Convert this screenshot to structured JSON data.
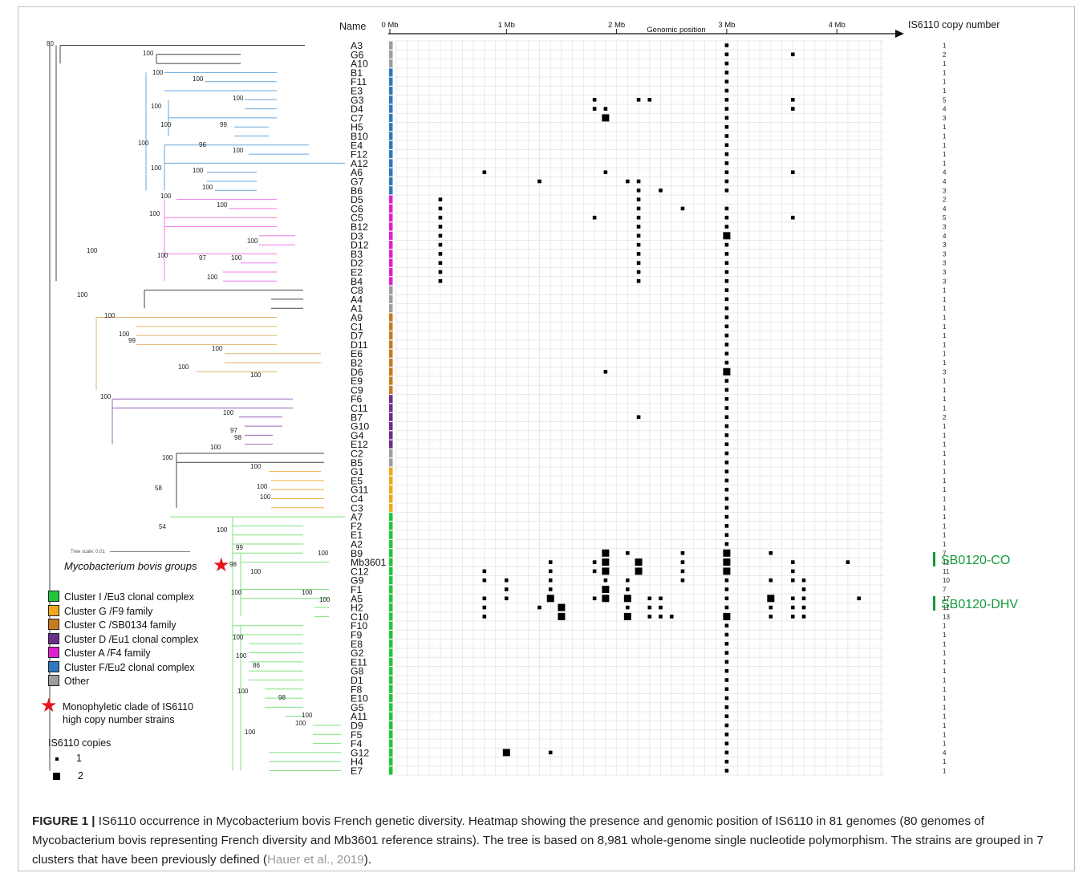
{
  "figure": {
    "header_name": "Name",
    "header_copy": "IS6110 copy number",
    "axis_title": "Genomic position",
    "axis_ticks": [
      "0 Mb",
      "1 Mb",
      "2 Mb",
      "3 Mb",
      "4 Mb"
    ],
    "axis_tick_values_mb": [
      0,
      1,
      2,
      3,
      4
    ]
  },
  "groups": {
    "I": {
      "color": "#21c63b",
      "branch": "#7fe07f"
    },
    "G": {
      "color": "#f0a81a",
      "branch": "#f0b040"
    },
    "C": {
      "color": "#c87a1e",
      "branch": "#e2b36d"
    },
    "D": {
      "color": "#6a2f8a",
      "branch": "#9b64b8"
    },
    "A": {
      "color": "#e020d0",
      "branch": "#f07be6"
    },
    "F": {
      "color": "#2f78c0",
      "branch": "#6aa7d9"
    },
    "O": {
      "color": "#9e9e9e",
      "branch": "#444444"
    }
  },
  "strains": [
    {
      "name": "A3",
      "group": "O",
      "copies": "1",
      "pos": [
        3.0,
        1
      ]
    },
    {
      "name": "G6",
      "group": "O",
      "copies": "2",
      "pos": [
        3.0,
        1,
        3.6,
        1
      ]
    },
    {
      "name": "A10",
      "group": "O",
      "copies": "1",
      "pos": [
        3.0,
        1
      ]
    },
    {
      "name": "B1",
      "group": "F",
      "copies": "1",
      "pos": [
        3.0,
        1
      ]
    },
    {
      "name": "F11",
      "group": "F",
      "copies": "1",
      "pos": [
        3.0,
        1
      ]
    },
    {
      "name": "E3",
      "group": "F",
      "copies": "1",
      "pos": [
        3.0,
        1
      ]
    },
    {
      "name": "G3",
      "group": "F",
      "copies": "5",
      "pos": [
        1.8,
        1,
        2.2,
        1,
        2.3,
        1,
        3.0,
        1,
        3.6,
        1
      ]
    },
    {
      "name": "D4",
      "group": "F",
      "copies": "4",
      "pos": [
        1.8,
        1,
        1.9,
        1,
        3.0,
        1,
        3.6,
        1
      ]
    },
    {
      "name": "C7",
      "group": "F",
      "copies": "3",
      "pos": [
        1.9,
        2,
        3.0,
        1
      ]
    },
    {
      "name": "H5",
      "group": "F",
      "copies": "1",
      "pos": [
        3.0,
        1
      ]
    },
    {
      "name": "B10",
      "group": "F",
      "copies": "1",
      "pos": [
        3.0,
        1
      ]
    },
    {
      "name": "E4",
      "group": "F",
      "copies": "1",
      "pos": [
        3.0,
        1
      ]
    },
    {
      "name": "F12",
      "group": "F",
      "copies": "1",
      "pos": [
        3.0,
        1
      ]
    },
    {
      "name": "A12",
      "group": "F",
      "copies": "1",
      "pos": [
        3.0,
        1
      ]
    },
    {
      "name": "A6",
      "group": "F",
      "copies": "4",
      "pos": [
        0.8,
        1,
        1.9,
        1,
        3.0,
        1,
        3.6,
        1
      ]
    },
    {
      "name": "G7",
      "group": "F",
      "copies": "4",
      "pos": [
        1.3,
        1,
        2.1,
        1,
        2.2,
        1,
        3.0,
        1
      ]
    },
    {
      "name": "B6",
      "group": "F",
      "copies": "3",
      "pos": [
        2.2,
        1,
        2.4,
        1,
        3.0,
        1
      ]
    },
    {
      "name": "D5",
      "group": "A",
      "copies": "2",
      "pos": [
        0.4,
        1,
        2.2,
        1
      ]
    },
    {
      "name": "C6",
      "group": "A",
      "copies": "4",
      "pos": [
        0.4,
        1,
        2.2,
        1,
        2.6,
        1,
        3.0,
        1
      ]
    },
    {
      "name": "C5",
      "group": "A",
      "copies": "5",
      "pos": [
        0.4,
        1,
        1.8,
        1,
        2.2,
        1,
        3.0,
        1,
        3.6,
        1
      ]
    },
    {
      "name": "B12",
      "group": "A",
      "copies": "3",
      "pos": [
        0.4,
        1,
        2.2,
        1,
        3.0,
        1
      ]
    },
    {
      "name": "D3",
      "group": "A",
      "copies": "4",
      "pos": [
        0.4,
        1,
        2.2,
        1,
        3.0,
        2
      ]
    },
    {
      "name": "D12",
      "group": "A",
      "copies": "3",
      "pos": [
        0.4,
        1,
        2.2,
        1,
        3.0,
        1
      ]
    },
    {
      "name": "B3",
      "group": "A",
      "copies": "3",
      "pos": [
        0.4,
        1,
        2.2,
        1,
        3.0,
        1
      ]
    },
    {
      "name": "D2",
      "group": "A",
      "copies": "3",
      "pos": [
        0.4,
        1,
        2.2,
        1,
        3.0,
        1
      ]
    },
    {
      "name": "E2",
      "group": "A",
      "copies": "3",
      "pos": [
        0.4,
        1,
        2.2,
        1,
        3.0,
        1
      ]
    },
    {
      "name": "B4",
      "group": "A",
      "copies": "3",
      "pos": [
        0.4,
        1,
        2.2,
        1,
        3.0,
        1
      ]
    },
    {
      "name": "C8",
      "group": "O",
      "copies": "1",
      "pos": [
        3.0,
        1
      ]
    },
    {
      "name": "A4",
      "group": "O",
      "copies": "1",
      "pos": [
        3.0,
        1
      ]
    },
    {
      "name": "A1",
      "group": "O",
      "copies": "1",
      "pos": [
        3.0,
        1
      ]
    },
    {
      "name": "A9",
      "group": "C",
      "copies": "1",
      "pos": [
        3.0,
        1
      ]
    },
    {
      "name": "C1",
      "group": "C",
      "copies": "1",
      "pos": [
        3.0,
        1
      ]
    },
    {
      "name": "D7",
      "group": "C",
      "copies": "1",
      "pos": [
        3.0,
        1
      ]
    },
    {
      "name": "D11",
      "group": "C",
      "copies": "1",
      "pos": [
        3.0,
        1
      ]
    },
    {
      "name": "E6",
      "group": "C",
      "copies": "1",
      "pos": [
        3.0,
        1
      ]
    },
    {
      "name": "B2",
      "group": "C",
      "copies": "1",
      "pos": [
        3.0,
        1
      ]
    },
    {
      "name": "D6",
      "group": "C",
      "copies": "3",
      "pos": [
        1.9,
        1,
        3.0,
        2
      ]
    },
    {
      "name": "E9",
      "group": "C",
      "copies": "1",
      "pos": [
        3.0,
        1
      ]
    },
    {
      "name": "C9",
      "group": "C",
      "copies": "1",
      "pos": [
        3.0,
        1
      ]
    },
    {
      "name": "F6",
      "group": "D",
      "copies": "1",
      "pos": [
        3.0,
        1
      ]
    },
    {
      "name": "C11",
      "group": "D",
      "copies": "1",
      "pos": [
        3.0,
        1
      ]
    },
    {
      "name": "B7",
      "group": "D",
      "copies": "2",
      "pos": [
        2.2,
        1,
        3.0,
        1
      ]
    },
    {
      "name": "G10",
      "group": "D",
      "copies": "1",
      "pos": [
        3.0,
        1
      ]
    },
    {
      "name": "G4",
      "group": "D",
      "copies": "1",
      "pos": [
        3.0,
        1
      ]
    },
    {
      "name": "E12",
      "group": "D",
      "copies": "1",
      "pos": [
        3.0,
        1
      ]
    },
    {
      "name": "C2",
      "group": "O",
      "copies": "1",
      "pos": [
        3.0,
        1
      ]
    },
    {
      "name": "B5",
      "group": "O",
      "copies": "1",
      "pos": [
        3.0,
        1
      ]
    },
    {
      "name": "G1",
      "group": "G",
      "copies": "1",
      "pos": [
        3.0,
        1
      ]
    },
    {
      "name": "E5",
      "group": "G",
      "copies": "1",
      "pos": [
        3.0,
        1
      ]
    },
    {
      "name": "G11",
      "group": "G",
      "copies": "1",
      "pos": [
        3.0,
        1
      ]
    },
    {
      "name": "C4",
      "group": "G",
      "copies": "1",
      "pos": [
        3.0,
        1
      ]
    },
    {
      "name": "C3",
      "group": "G",
      "copies": "1",
      "pos": [
        3.0,
        1
      ]
    },
    {
      "name": "A7",
      "group": "I",
      "copies": "1",
      "pos": [
        3.0,
        1
      ]
    },
    {
      "name": "F2",
      "group": "I",
      "copies": "1",
      "pos": [
        3.0,
        1
      ]
    },
    {
      "name": "E1",
      "group": "I",
      "copies": "1",
      "pos": [
        3.0,
        1
      ]
    },
    {
      "name": "A2",
      "group": "I",
      "copies": "1",
      "pos": [
        3.0,
        1
      ]
    },
    {
      "name": "B9",
      "group": "I",
      "copies": "7",
      "pos": [
        1.9,
        2,
        2.1,
        1,
        2.6,
        1,
        3.0,
        2,
        3.4,
        1
      ]
    },
    {
      "name": "Mb3601",
      "group": "I",
      "copies": "11",
      "pos": [
        1.4,
        1,
        1.8,
        1,
        1.9,
        2,
        2.2,
        2,
        2.6,
        1,
        3.0,
        2,
        3.6,
        1,
        4.1,
        1
      ]
    },
    {
      "name": "C12",
      "group": "I",
      "copies": "11",
      "pos": [
        0.8,
        1,
        1.4,
        1,
        1.8,
        1,
        1.9,
        2,
        2.2,
        2,
        2.6,
        1,
        3.0,
        2,
        3.6,
        1
      ]
    },
    {
      "name": "G9",
      "group": "I",
      "copies": "10",
      "pos": [
        0.8,
        1,
        1.0,
        1,
        1.4,
        1,
        1.9,
        1,
        2.1,
        1,
        2.6,
        1,
        3.0,
        1,
        3.4,
        1,
        3.6,
        1,
        3.7,
        1
      ]
    },
    {
      "name": "F1",
      "group": "I",
      "copies": "7",
      "pos": [
        1.0,
        1,
        1.4,
        1,
        1.9,
        2,
        2.1,
        1,
        3.0,
        1,
        3.7,
        1
      ]
    },
    {
      "name": "A5",
      "group": "I",
      "copies": "17",
      "pos": [
        0.8,
        1,
        1.0,
        1,
        1.4,
        2,
        1.8,
        1,
        1.9,
        2,
        2.1,
        2,
        2.3,
        1,
        2.4,
        1,
        3.0,
        1,
        3.4,
        2,
        3.6,
        1,
        3.7,
        1,
        4.2,
        1
      ]
    },
    {
      "name": "H2",
      "group": "I",
      "copies": "11",
      "pos": [
        0.8,
        1,
        1.3,
        1,
        1.5,
        2,
        2.1,
        1,
        2.3,
        1,
        2.4,
        1,
        3.0,
        1,
        3.4,
        1,
        3.6,
        1,
        3.7,
        1
      ]
    },
    {
      "name": "C10",
      "group": "I",
      "copies": "13",
      "pos": [
        0.8,
        1,
        1.5,
        2,
        2.1,
        2,
        2.3,
        1,
        2.4,
        1,
        2.5,
        1,
        3.0,
        2,
        3.4,
        1,
        3.6,
        1,
        3.7,
        1
      ]
    },
    {
      "name": "F10",
      "group": "I",
      "copies": "1",
      "pos": [
        3.0,
        1
      ]
    },
    {
      "name": "F9",
      "group": "I",
      "copies": "1",
      "pos": [
        3.0,
        1
      ]
    },
    {
      "name": "E8",
      "group": "I",
      "copies": "1",
      "pos": [
        3.0,
        1
      ]
    },
    {
      "name": "G2",
      "group": "I",
      "copies": "1",
      "pos": [
        3.0,
        1
      ]
    },
    {
      "name": "E11",
      "group": "I",
      "copies": "1",
      "pos": [
        3.0,
        1
      ]
    },
    {
      "name": "G8",
      "group": "I",
      "copies": "1",
      "pos": [
        3.0,
        1
      ]
    },
    {
      "name": "D1",
      "group": "I",
      "copies": "1",
      "pos": [
        3.0,
        1
      ]
    },
    {
      "name": "F8",
      "group": "I",
      "copies": "1",
      "pos": [
        3.0,
        1
      ]
    },
    {
      "name": "E10",
      "group": "I",
      "copies": "1",
      "pos": [
        3.0,
        1
      ]
    },
    {
      "name": "G5",
      "group": "I",
      "copies": "1",
      "pos": [
        3.0,
        1
      ]
    },
    {
      "name": "A11",
      "group": "I",
      "copies": "1",
      "pos": [
        3.0,
        1
      ]
    },
    {
      "name": "D9",
      "group": "I",
      "copies": "1",
      "pos": [
        3.0,
        1
      ]
    },
    {
      "name": "F5",
      "group": "I",
      "copies": "1",
      "pos": [
        3.0,
        1
      ]
    },
    {
      "name": "F4",
      "group": "I",
      "copies": "1",
      "pos": [
        3.0,
        1
      ]
    },
    {
      "name": "G12",
      "group": "I",
      "copies": "4",
      "pos": [
        1.0,
        2,
        1.4,
        1,
        3.0,
        1
      ]
    },
    {
      "name": "H4",
      "group": "I",
      "copies": "1",
      "pos": [
        3.0,
        1
      ]
    },
    {
      "name": "E7",
      "group": "I",
      "copies": "1",
      "pos": [
        3.0,
        1
      ]
    }
  ],
  "bootstrap": [
    {
      "v": "80"
    },
    {
      "v": "100"
    },
    {
      "v": "100"
    },
    {
      "v": "100"
    },
    {
      "v": "100"
    },
    {
      "v": "100"
    },
    {
      "v": "100"
    },
    {
      "v": "99"
    },
    {
      "v": "100"
    },
    {
      "v": "96"
    },
    {
      "v": "100"
    },
    {
      "v": "100"
    },
    {
      "v": "100"
    },
    {
      "v": "100"
    },
    {
      "v": "100"
    },
    {
      "v": "100"
    },
    {
      "v": "100"
    },
    {
      "v": "100"
    },
    {
      "v": "100"
    },
    {
      "v": "97"
    },
    {
      "v": "100"
    },
    {
      "v": "100"
    },
    {
      "v": "100"
    },
    {
      "v": "100"
    },
    {
      "v": "100"
    },
    {
      "v": "100"
    },
    {
      "v": "99"
    },
    {
      "v": "100"
    },
    {
      "v": "100"
    },
    {
      "v": "100"
    },
    {
      "v": "100"
    },
    {
      "v": "100"
    },
    {
      "v": "97"
    },
    {
      "v": "98"
    },
    {
      "v": "100"
    },
    {
      "v": "100"
    },
    {
      "v": "100"
    },
    {
      "v": "100"
    },
    {
      "v": "100"
    },
    {
      "v": "58"
    },
    {
      "v": "54"
    },
    {
      "v": "100"
    },
    {
      "v": "99"
    },
    {
      "v": "100"
    },
    {
      "v": "98"
    },
    {
      "v": "100"
    },
    {
      "v": "100"
    },
    {
      "v": "100"
    },
    {
      "v": "100"
    },
    {
      "v": "100"
    },
    {
      "v": "100"
    },
    {
      "v": "86"
    },
    {
      "v": "100"
    },
    {
      "v": "98"
    },
    {
      "v": "100"
    },
    {
      "v": "100"
    },
    {
      "v": "100"
    }
  ],
  "legend": {
    "scale": "Tree scale: 0.01",
    "title": "Mycobacterium bovis groups",
    "items": [
      {
        "label": "Cluster I /Eu3 clonal complex",
        "color": "#21c63b"
      },
      {
        "label": "Cluster G /F9 family",
        "color": "#f0a81a"
      },
      {
        "label": "Cluster C /SB0134 family",
        "color": "#c87a1e"
      },
      {
        "label": "Cluster D /Eu1 clonal complex",
        "color": "#6a2f8a"
      },
      {
        "label": "Cluster A /F4 family",
        "color": "#e020d0"
      },
      {
        "label": "Cluster F/Eu2 clonal complex",
        "color": "#2f78c0"
      },
      {
        "label": "Other",
        "color": "#9e9e9e"
      }
    ],
    "star_line1": "Monophyletic clade of IS6110",
    "star_line2": "high copy number strains",
    "copies_title": "IS6110 copies",
    "copies_1": "1",
    "copies_2": "2"
  },
  "clade_labels": {
    "co": "SB0120-CO",
    "dhv": "SB0120-DHV"
  },
  "caption": {
    "lead": "FIGURE 1 |",
    "text": " IS6110 occurrence in Mycobacterium bovis French genetic diversity. Heatmap showing the presence and genomic position of IS6110 in 81 genomes (80 genomes of Mycobacterium bovis representing French diversity and Mb3601 reference strains). The tree is based on 8,981 whole-genome single nucleotide polymorphism. The strains are grouped in 7 clusters that have been previously defined (",
    "cite": "Hauer et al., 2019",
    "end": ")."
  }
}
